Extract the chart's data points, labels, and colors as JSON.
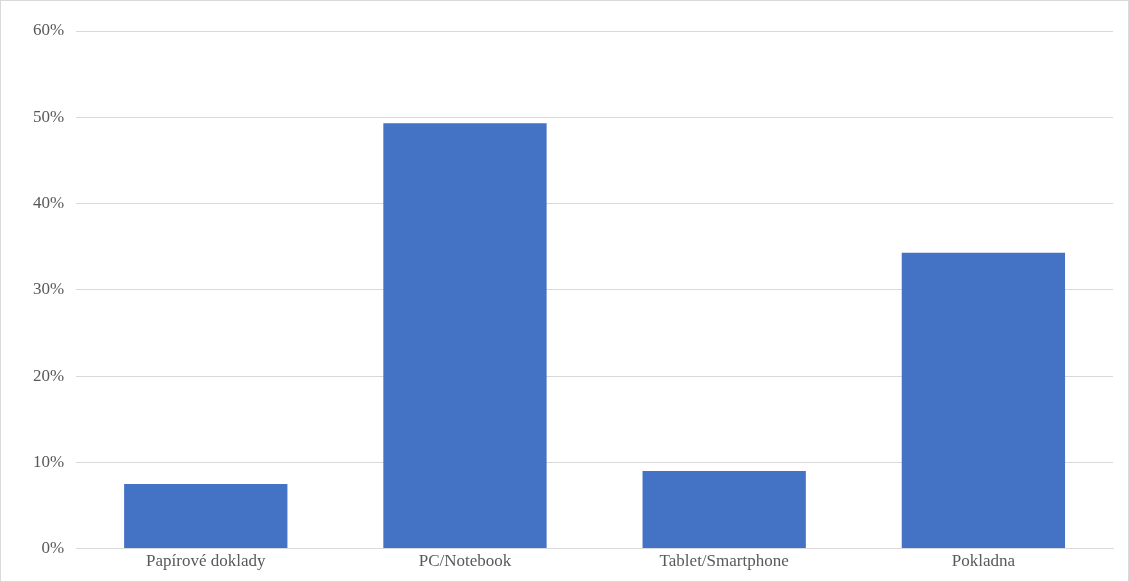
{
  "chart_data": {
    "type": "bar",
    "categories": [
      "Papírové doklady",
      "PC/Notebook",
      "Tablet/Smartphone",
      "Pokladna"
    ],
    "values": [
      7.5,
      49.3,
      9.0,
      34.3
    ],
    "color": "#4472c4",
    "ylim": [
      0,
      60
    ],
    "yticks": [
      {
        "value": 0,
        "label": "0%"
      },
      {
        "value": 10,
        "label": "10%"
      },
      {
        "value": 20,
        "label": "20%"
      },
      {
        "value": 30,
        "label": "30%"
      },
      {
        "value": 40,
        "label": "40%"
      },
      {
        "value": 50,
        "label": "50%"
      },
      {
        "value": 60,
        "label": "60%"
      }
    ],
    "grid": "y",
    "legend": false
  }
}
